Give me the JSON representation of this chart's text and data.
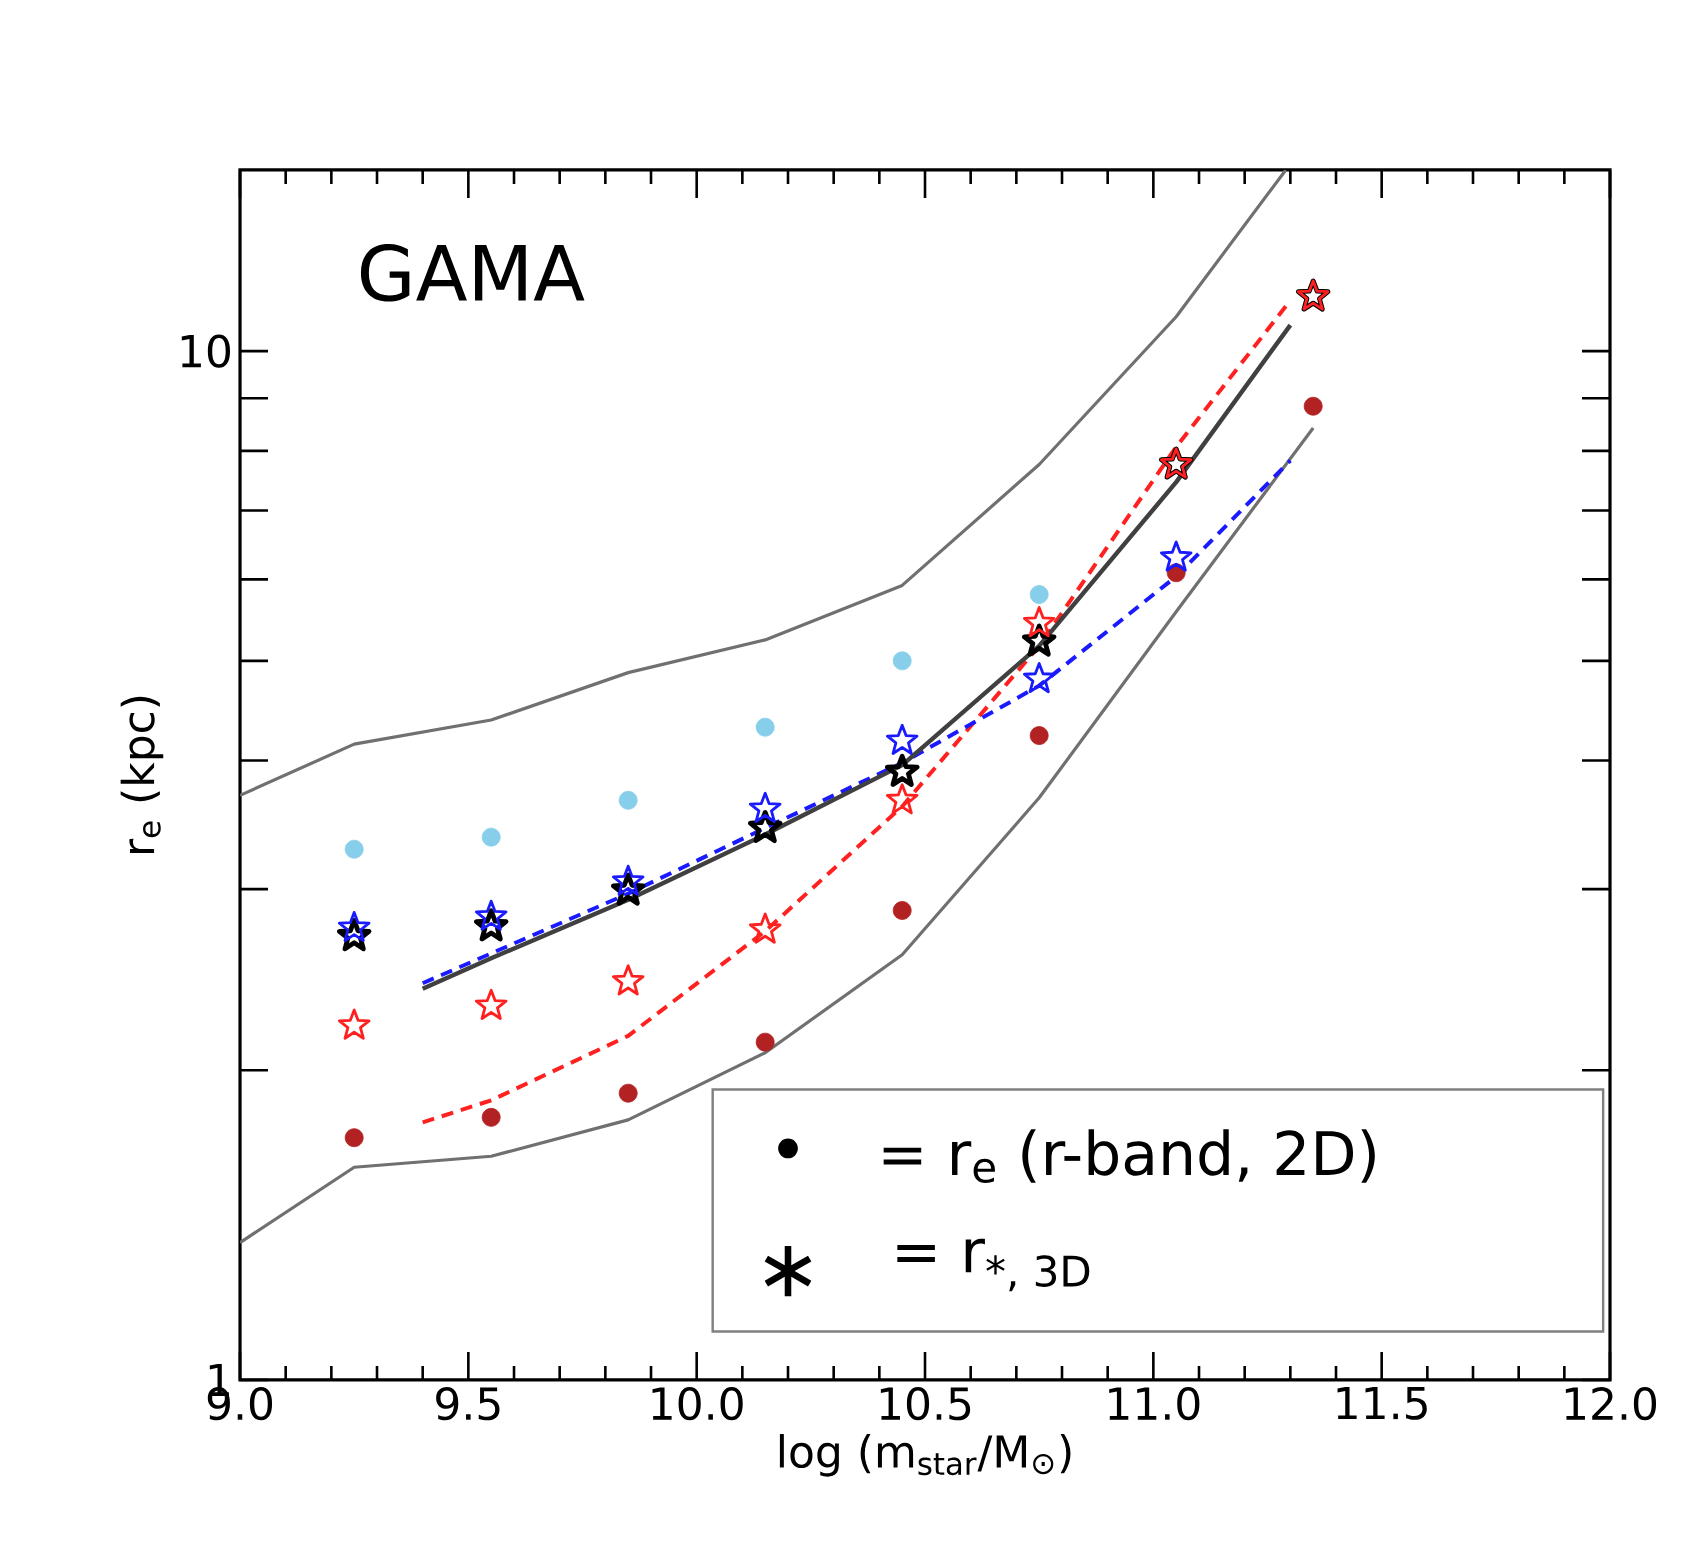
{
  "chart_data": {
    "type": "scatter",
    "xlabel": "log (m$_{star}$/M$_{⊙}$)",
    "ylabel": "r$_{e}$ (kpc)",
    "log": "y",
    "grid": false,
    "xlim": [
      9.0,
      12.0
    ],
    "ylim": [
      1,
      15
    ],
    "xticks": [
      {
        "value": 9.0,
        "label": "9.0"
      },
      {
        "value": 9.5,
        "label": "9.5"
      },
      {
        "value": 10.0,
        "label": "10.0"
      },
      {
        "value": 10.5,
        "label": "10.5"
      },
      {
        "value": 11.0,
        "label": "11.0"
      },
      {
        "value": 11.5,
        "label": "11.5"
      },
      {
        "value": 12.0,
        "label": "12.0"
      }
    ],
    "yticks": [
      1,
      {
        "value": 2,
        "label": null
      },
      {
        "value": 3,
        "label": null
      },
      {
        "value": 4,
        "label": null
      },
      {
        "value": 5,
        "label": null
      },
      {
        "value": 6,
        "label": null
      },
      {
        "value": 7,
        "label": null
      },
      {
        "value": 8,
        "label": null
      },
      {
        "value": 9,
        "label": null
      },
      10
    ],
    "annotations": [
      "GAMA",
      "•",
      "= r$_{e}$ (r-band, 2D)",
      "∗",
      "= r$_{*, 3D}$"
    ],
    "series": [
      {
        "type": "line",
        "color": "#707070",
        "marker": "none",
        "line_style": "solid",
        "x": [
          9.0,
          9.25,
          9.55,
          9.85,
          10.15,
          10.45,
          10.75,
          11.05,
          11.29
        ],
        "values": [
          3.7,
          4.15,
          4.38,
          4.87,
          5.24,
          5.92,
          7.76,
          10.8,
          15.0
        ]
      },
      {
        "type": "line",
        "color": "#707070",
        "marker": "none",
        "line_style": "solid",
        "x": [
          9.0,
          9.25,
          9.55,
          9.85,
          10.15,
          10.45,
          10.75,
          11.05,
          11.35
        ],
        "values": [
          1.36,
          1.61,
          1.65,
          1.79,
          2.08,
          2.59,
          3.68,
          5.58,
          8.42
        ]
      },
      {
        "type": "line",
        "color": "#ff2020",
        "marker": "none",
        "line_style": "dashed",
        "x": [
          9.4,
          9.55,
          9.85,
          10.15,
          10.45,
          10.75,
          11.05,
          11.3
        ],
        "values": [
          1.78,
          1.87,
          2.16,
          2.73,
          3.61,
          5.17,
          8.07,
          11.2
        ]
      },
      {
        "type": "line",
        "color": "#1a1aff",
        "marker": "none",
        "line_style": "dashed",
        "x": [
          9.4,
          9.85,
          10.15,
          10.45,
          10.75,
          11.05,
          11.3
        ],
        "values": [
          2.43,
          2.97,
          3.44,
          3.98,
          4.73,
          6.04,
          7.83
        ]
      },
      {
        "type": "line",
        "color": "#404040",
        "marker": "none",
        "line_style": "solid",
        "x": [
          9.4,
          9.55,
          9.85,
          10.15,
          10.45,
          10.75,
          11.05,
          11.3
        ],
        "values": [
          2.4,
          2.57,
          2.93,
          3.39,
          3.96,
          5.17,
          7.46,
          10.6
        ]
      },
      {
        "type": "scatter",
        "color": "#87ceeb",
        "marker": "circle",
        "x": [
          9.25,
          9.55,
          9.85,
          10.15,
          10.45,
          10.75
        ],
        "values": [
          3.28,
          3.37,
          3.66,
          4.31,
          5.0,
          5.8
        ]
      },
      {
        "type": "scatter",
        "color": "#b22222",
        "marker": "circle",
        "x": [
          9.25,
          9.55,
          9.85,
          10.15,
          10.45,
          10.75,
          11.05,
          11.35
        ],
        "values": [
          1.72,
          1.8,
          1.9,
          2.13,
          2.86,
          4.23,
          6.09,
          8.84
        ]
      },
      {
        "type": "scatter",
        "color": "#000000",
        "marker": "star",
        "x": [
          9.25,
          9.55,
          9.85,
          10.15,
          10.45,
          10.75,
          11.05,
          11.35
        ],
        "values": [
          2.7,
          2.76,
          2.99,
          3.44,
          3.9,
          5.22,
          7.76,
          11.3
        ]
      },
      {
        "type": "scatter",
        "color": "#1a1aff",
        "marker": "star",
        "x": [
          9.25,
          9.55,
          9.85,
          10.15,
          10.45,
          10.75,
          11.05
        ],
        "values": [
          2.75,
          2.82,
          3.05,
          3.59,
          4.18,
          4.8,
          6.3
        ]
      },
      {
        "type": "scatter",
        "color": "#ff2020",
        "marker": "star",
        "x": [
          9.25,
          9.55,
          9.85,
          10.15,
          10.45,
          10.75,
          11.05,
          11.35
        ],
        "values": [
          2.21,
          2.31,
          2.44,
          2.74,
          3.66,
          5.44,
          7.76,
          11.3
        ]
      }
    ]
  }
}
